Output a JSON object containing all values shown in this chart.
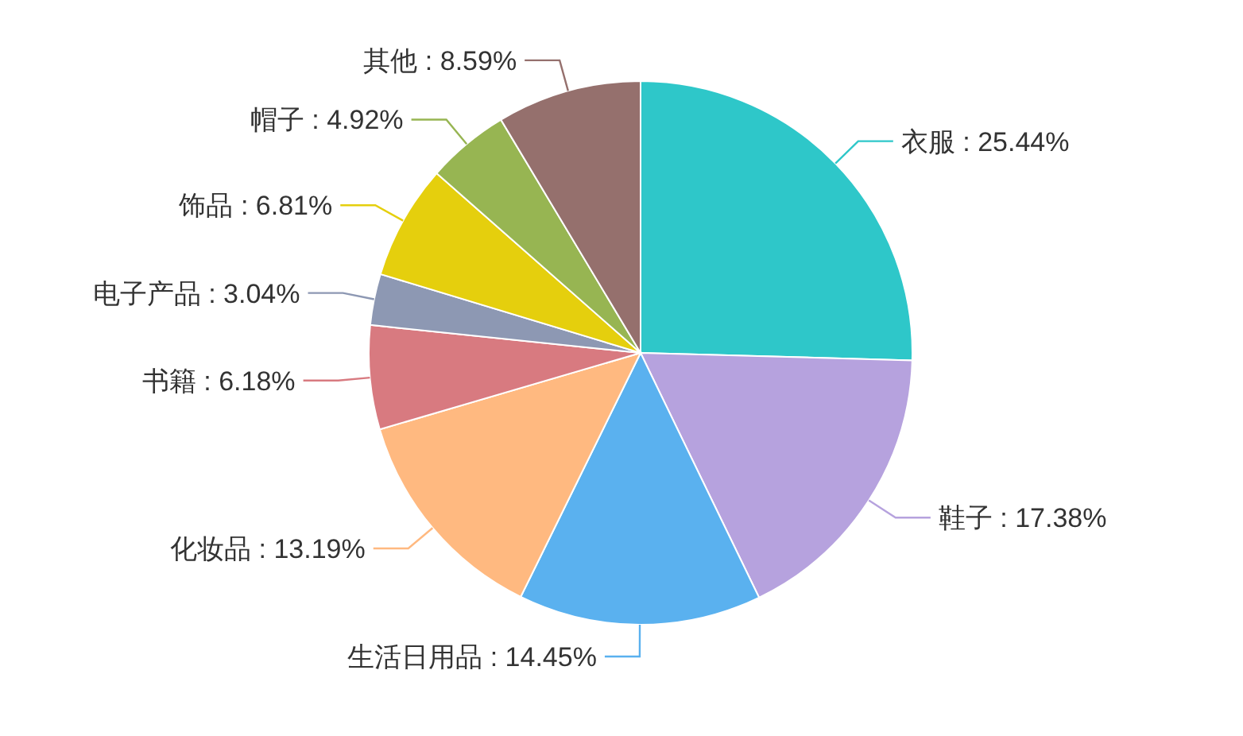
{
  "chart_data": {
    "type": "pie",
    "categories": [
      "衣服",
      "鞋子",
      "生活日用品",
      "化妆品",
      "书籍",
      "电子产品",
      "饰品",
      "帽子",
      "其他"
    ],
    "values": [
      25.44,
      17.38,
      14.45,
      13.19,
      6.18,
      3.04,
      6.81,
      4.92,
      8.59
    ],
    "value_labels": [
      "25.44%",
      "17.38%",
      "14.45%",
      "13.19%",
      "6.18%",
      "3.04%",
      "6.81%",
      "4.92%",
      "8.59%"
    ],
    "colors": [
      "#2ec7c9",
      "#b6a2de",
      "#5ab1ef",
      "#ffb980",
      "#d87a80",
      "#8d98b3",
      "#e5cf0d",
      "#97b552",
      "#95706d"
    ],
    "legend": false
  }
}
